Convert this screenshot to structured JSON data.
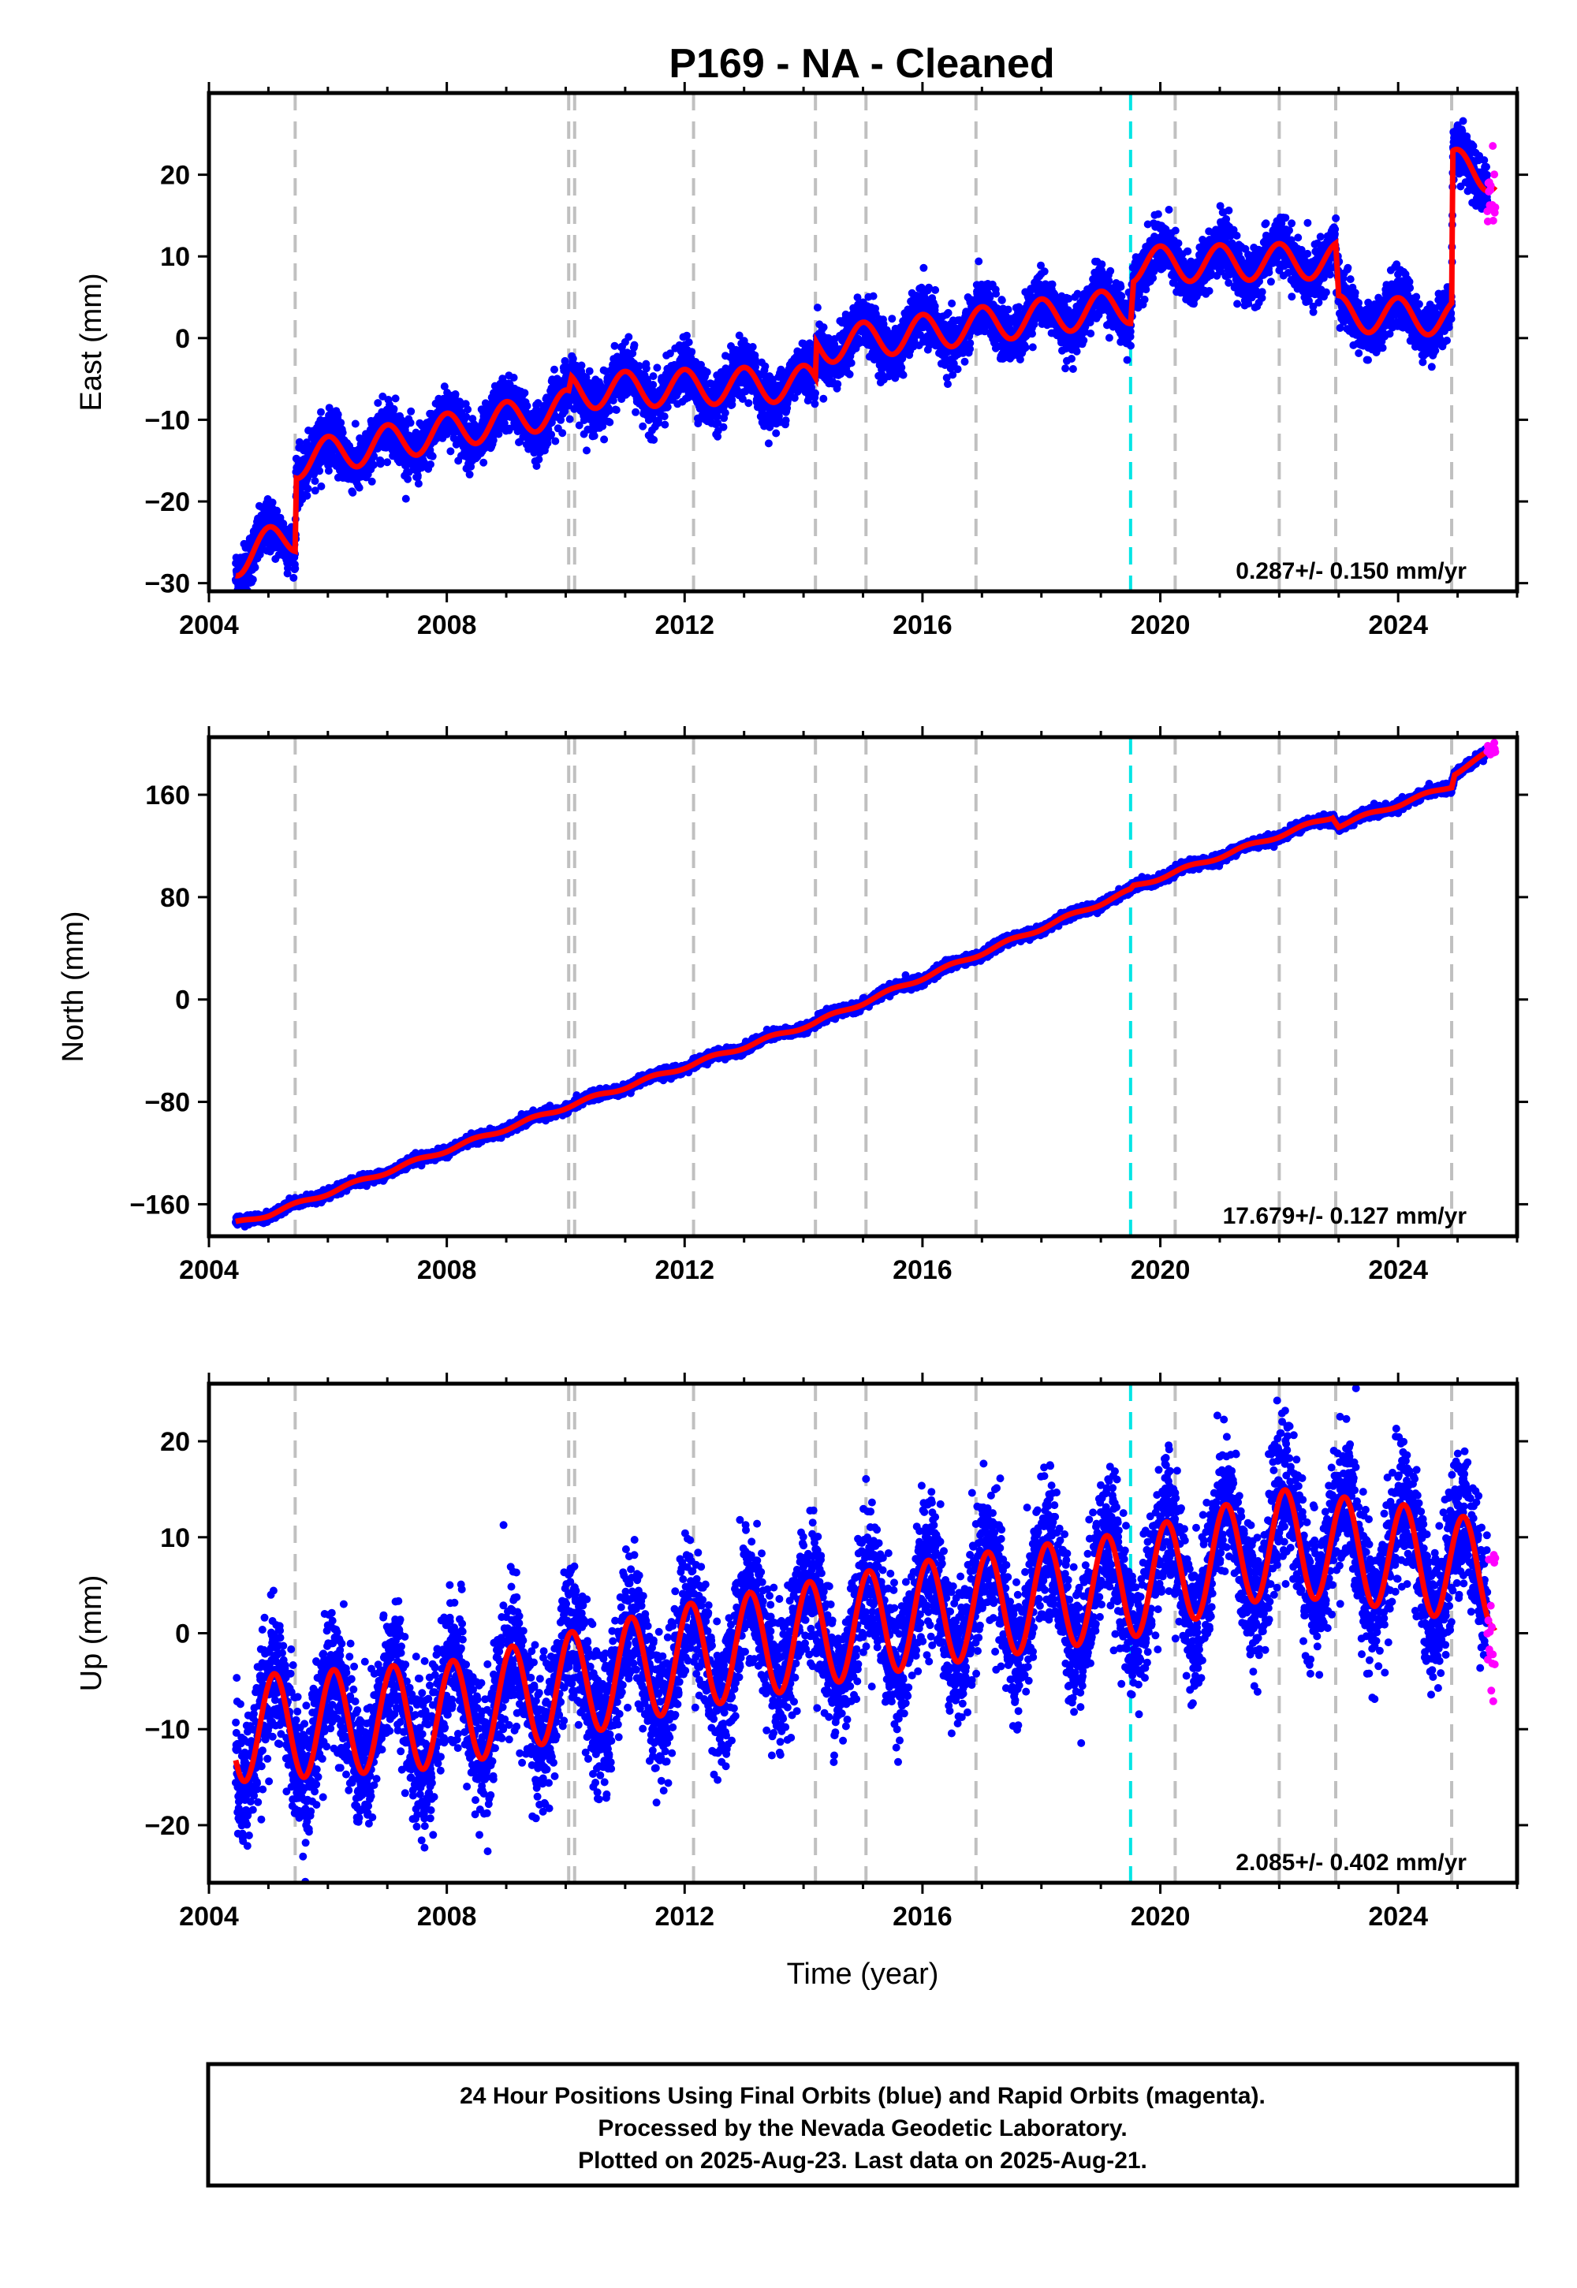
{
  "title": "P169  - NA - Cleaned",
  "footer": [
    "24 Hour Positions Using Final Orbits (blue) and Rapid Orbits (magenta).",
    "Processed by the Nevada Geodetic Laboratory.",
    "Plotted on 2025-Aug-23. Last data on 2025-Aug-21."
  ],
  "colors": {
    "final_orbits": "#0000ff",
    "rapid_orbits": "#ff00ff",
    "model": "#ff0000",
    "equipment_change_lines": "#c0c0c0",
    "earthquake_line": "#00e5e5"
  },
  "chart_data": [
    {
      "type": "scatter",
      "panel": "east",
      "ylabel": "East (mm)",
      "xlim": [
        2004.0,
        2026.0
      ],
      "ylim": [
        -31,
        30
      ],
      "x_ticks": [
        2004,
        2008,
        2012,
        2016,
        2020,
        2024
      ],
      "y_ticks": [
        -30,
        -20,
        -10,
        0,
        10,
        20
      ],
      "y_tick_labels": [
        "−30",
        "−20",
        "−10",
        "0",
        "10",
        "20"
      ],
      "rate_label": "0.287+/- 0.150 mm/yr",
      "x_range_data": [
        2004.45,
        2025.64
      ],
      "series": [
        {
          "name": "Final Orbits",
          "color": "#0000ff",
          "marker": "dot",
          "noise_mm": 1.6
        },
        {
          "name": "Rapid Orbits",
          "color": "#ff00ff",
          "marker": "dot",
          "x_range": [
            2025.5,
            2025.64
          ]
        },
        {
          "name": "Model",
          "color": "#ff0000",
          "line": true
        }
      ],
      "model": {
        "anchors": [
          [
            2004.45,
            -27
          ],
          [
            2005.45,
            -24
          ],
          [
            2005.47,
            -15
          ],
          [
            2010.05,
            -8.5
          ],
          [
            2010.1,
            -6.5
          ],
          [
            2014.2,
            -5.5
          ],
          [
            2014.22,
            -1.0
          ],
          [
            2019.5,
            4.0
          ],
          [
            2019.55,
            9.0
          ],
          [
            2022.95,
            9.5
          ],
          [
            2023.0,
            3.0
          ],
          [
            2024.9,
            2.5
          ],
          [
            2024.92,
            21.0
          ],
          [
            2025.64,
            20.0
          ]
        ],
        "seasonal_amplitude_mm": 2.2,
        "seasonal_phase_year": 0.75
      },
      "equipment_change_lines": [
        2005.45,
        2010.05,
        2010.15,
        2012.15,
        2014.2,
        2015.05,
        2016.9,
        2020.25,
        2022.0,
        2022.95,
        2024.9
      ],
      "earthquake_lines": [
        2019.5
      ]
    },
    {
      "type": "scatter",
      "panel": "north",
      "ylabel": "North (mm)",
      "xlim": [
        2004.0,
        2026.0
      ],
      "ylim": [
        -185,
        205
      ],
      "x_ticks": [
        2004,
        2008,
        2012,
        2016,
        2020,
        2024
      ],
      "y_ticks": [
        -160,
        -80,
        0,
        80,
        160
      ],
      "y_tick_labels": [
        "−160",
        "−80",
        "0",
        "80",
        "160"
      ],
      "rate_label": "17.679+/- 0.127 mm/yr",
      "x_range_data": [
        2004.45,
        2025.64
      ],
      "series": [
        {
          "name": "Final Orbits",
          "color": "#0000ff",
          "marker": "dot",
          "noise_mm": 1.8
        },
        {
          "name": "Rapid Orbits",
          "color": "#ff00ff",
          "marker": "dot",
          "x_range": [
            2025.5,
            2025.64
          ]
        },
        {
          "name": "Model",
          "color": "#ff0000",
          "line": true
        }
      ],
      "model": {
        "anchors": [
          [
            2004.45,
            -175
          ],
          [
            2005.0,
            -168
          ],
          [
            2010.0,
            -84
          ],
          [
            2014.2,
            -18
          ],
          [
            2019.5,
            85
          ],
          [
            2019.55,
            88
          ],
          [
            2022.9,
            143
          ],
          [
            2023.0,
            136
          ],
          [
            2024.9,
            167
          ],
          [
            2024.95,
            177
          ],
          [
            2025.64,
            196
          ]
        ],
        "seasonal_amplitude_mm": 1.5,
        "seasonal_phase_year": 0.2
      },
      "equipment_change_lines": [
        2005.45,
        2010.05,
        2010.15,
        2012.15,
        2014.2,
        2015.05,
        2016.9,
        2020.25,
        2022.0,
        2022.95,
        2024.9
      ],
      "earthquake_lines": [
        2019.5
      ]
    },
    {
      "type": "scatter",
      "panel": "up",
      "xlabel": "Time (year)",
      "ylabel": "Up (mm)",
      "xlim": [
        2004.0,
        2026.0
      ],
      "ylim": [
        -26,
        26
      ],
      "x_ticks": [
        2004,
        2008,
        2012,
        2016,
        2020,
        2024
      ],
      "y_ticks": [
        -20,
        -10,
        0,
        10,
        20
      ],
      "y_tick_labels": [
        "−20",
        "−10",
        "0",
        "10",
        "20"
      ],
      "rate_label": "2.085+/- 0.402 mm/yr",
      "x_range_data": [
        2004.45,
        2025.64
      ],
      "series": [
        {
          "name": "Final Orbits",
          "color": "#0000ff",
          "marker": "dot",
          "noise_mm": 3.5
        },
        {
          "name": "Rapid Orbits",
          "color": "#ff00ff",
          "marker": "dot",
          "x_range": [
            2025.5,
            2025.64
          ]
        },
        {
          "name": "Model",
          "color": "#ff0000",
          "line": true
        }
      ],
      "model": {
        "anchors": [
          [
            2004.45,
            -10
          ],
          [
            2008.0,
            -8.5
          ],
          [
            2012.0,
            -2.5
          ],
          [
            2016.0,
            2.0
          ],
          [
            2019.5,
            5.0
          ],
          [
            2022.0,
            9.5
          ],
          [
            2024.0,
            8.0
          ],
          [
            2025.64,
            6.0
          ]
        ],
        "seasonal_amplitude_mm": 5.5,
        "seasonal_phase_year": 0.85
      },
      "equipment_change_lines": [
        2005.45,
        2010.05,
        2010.15,
        2012.15,
        2014.2,
        2015.05,
        2016.9,
        2020.25,
        2022.0,
        2022.95,
        2024.9
      ],
      "earthquake_lines": [
        2019.5
      ]
    }
  ]
}
